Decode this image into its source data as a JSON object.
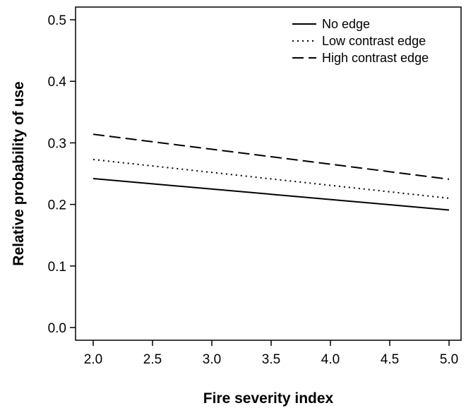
{
  "chart_data": {
    "type": "line",
    "title": "",
    "xlabel": "Fire severity index",
    "ylabel": "Relative probability of use",
    "xlim": [
      2.0,
      5.0
    ],
    "ylim": [
      0.0,
      0.5
    ],
    "x_ticks": [
      "2.0",
      "2.5",
      "3.0",
      "3.5",
      "4.0",
      "4.5",
      "5.0"
    ],
    "y_ticks": [
      "0.0",
      "0.1",
      "0.2",
      "0.3",
      "0.4",
      "0.5"
    ],
    "grid": false,
    "legend_position": "top-right",
    "series": [
      {
        "name": "No edge",
        "style": "solid",
        "x": [
          2.0,
          5.0
        ],
        "y": [
          0.242,
          0.191
        ]
      },
      {
        "name": "Low contrast edge",
        "style": "dotted",
        "x": [
          2.0,
          5.0
        ],
        "y": [
          0.273,
          0.21
        ]
      },
      {
        "name": "High contrast edge",
        "style": "dashed",
        "x": [
          2.0,
          5.0
        ],
        "y": [
          0.314,
          0.241
        ]
      }
    ]
  }
}
